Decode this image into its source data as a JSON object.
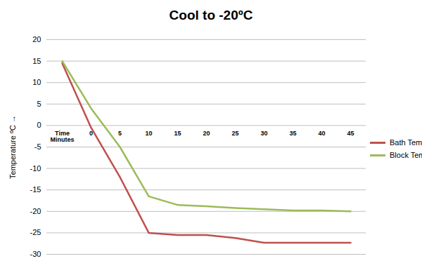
{
  "chart_data": {
    "type": "line",
    "title": "Cool to -20ºC",
    "ylabel": "Temperature ºC",
    "categories": [
      "Time\nMinutes",
      "0",
      "5",
      "10",
      "15",
      "20",
      "25",
      "30",
      "35",
      "40",
      "45"
    ],
    "series": [
      {
        "name": "Bath Temp",
        "color": "#c0504d",
        "values": [
          14.5,
          -0.5,
          -12,
          -25,
          -25.5,
          -25.5,
          -26.2,
          -27.3,
          -27.3,
          -27.3,
          -27.3
        ]
      },
      {
        "name": "Block Temp",
        "color": "#9bbb59",
        "values": [
          15,
          4,
          -5,
          -16.5,
          -18.5,
          -18.8,
          -19.2,
          -19.5,
          -19.8,
          -19.8,
          -20
        ]
      }
    ],
    "ylim": [
      -30,
      20
    ],
    "yticks": [
      -30,
      -25,
      -20,
      -15,
      -10,
      -5,
      0,
      5,
      10,
      15,
      20
    ],
    "grid": true,
    "legend": "right"
  }
}
